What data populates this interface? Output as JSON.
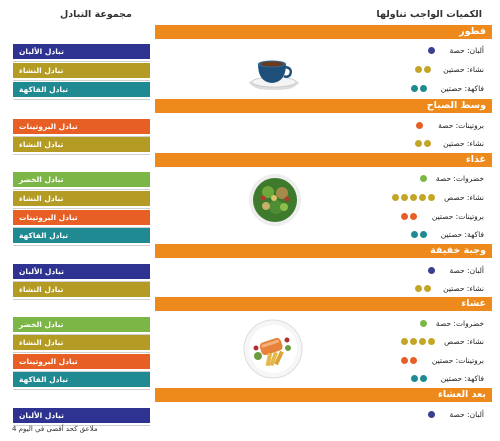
{
  "header": {
    "left_title": "مجموعة التبادل",
    "right_title": "الكميات الواجب تناولها"
  },
  "colors": {
    "orange": "#ee8a1b",
    "navy": "#2e3392",
    "olive": "#b39b24",
    "green": "#7cb646",
    "teal": "#1f8a92",
    "red": "#e85f25",
    "dot_navy": "#3a3f8f",
    "dot_olive": "#c4a527",
    "dot_teal": "#1f8a92",
    "dot_red": "#e85f25",
    "dot_green": "#7cb646"
  },
  "meals": [
    {
      "title": "فطور"
    },
    {
      "title": "وسط الصباح"
    },
    {
      "title": "غذاء"
    },
    {
      "title": "وجبة خفيفة"
    },
    {
      "title": "عشاء"
    },
    {
      "title": "بعد العشاء"
    }
  ],
  "rows": [
    {
      "label": "ألبان: حصة",
      "dots": 1,
      "color": "navy"
    },
    {
      "label": "نشاء: حصتين",
      "dots": 2,
      "color": "olive"
    },
    {
      "label": "فاكهة: حصتين",
      "dots": 2,
      "color": "teal"
    },
    {
      "label": "بروتينات: حصة",
      "dots": 1,
      "color": "red"
    },
    {
      "label": "نشاء: حصتين",
      "dots": 2,
      "color": "olive"
    },
    {
      "label": "خضروات: حصة",
      "dots": 1,
      "color": "green"
    },
    {
      "label": "نشاء: حصص",
      "dots": 5,
      "color": "olive"
    },
    {
      "label": "بروتينات: حصتين",
      "dots": 2,
      "color": "red"
    },
    {
      "label": "فاكهة: حصتين",
      "dots": 2,
      "color": "teal"
    },
    {
      "label": "ألبان: حصة",
      "dots": 1,
      "color": "navy"
    },
    {
      "label": "نشاء: حصتين",
      "dots": 2,
      "color": "olive"
    },
    {
      "label": "خضروات: حصة",
      "dots": 1,
      "color": "green"
    },
    {
      "label": "نشاء: حصص",
      "dots": 4,
      "color": "olive"
    },
    {
      "label": "بروتينات: حصتين",
      "dots": 2,
      "color": "red"
    },
    {
      "label": "فاكهة: حصتين",
      "dots": 2,
      "color": "teal"
    },
    {
      "label": "ألبان: حصة",
      "dots": 1,
      "color": "navy"
    }
  ],
  "buttons": [
    {
      "label": "تبادل الألبان",
      "color": "navy"
    },
    {
      "label": "تبادل النشاء",
      "color": "olive"
    },
    {
      "label": "تبادل الفاكهة",
      "color": "teal"
    },
    {
      "label": "تبادل البروتينات",
      "color": "red"
    },
    {
      "label": "تبادل النشاء",
      "color": "olive"
    },
    {
      "label": "تبادل الخضر",
      "color": "green"
    },
    {
      "label": "تبادل النشاء",
      "color": "olive"
    },
    {
      "label": "تبادل البروتينات",
      "color": "red"
    },
    {
      "label": "تبادل الفاكهة",
      "color": "teal"
    },
    {
      "label": "تبادل الألبان",
      "color": "navy"
    },
    {
      "label": "تبادل النشاء",
      "color": "olive"
    },
    {
      "label": "تبادل الخضر",
      "color": "green"
    },
    {
      "label": "تبادل النشاء",
      "color": "olive"
    },
    {
      "label": "تبادل البروتينات",
      "color": "red"
    },
    {
      "label": "تبادل الفاكهة",
      "color": "teal"
    },
    {
      "label": "تبادل الألبان",
      "color": "navy"
    }
  ],
  "footer": "4 ملاعق كحد أقصى في اليوم"
}
